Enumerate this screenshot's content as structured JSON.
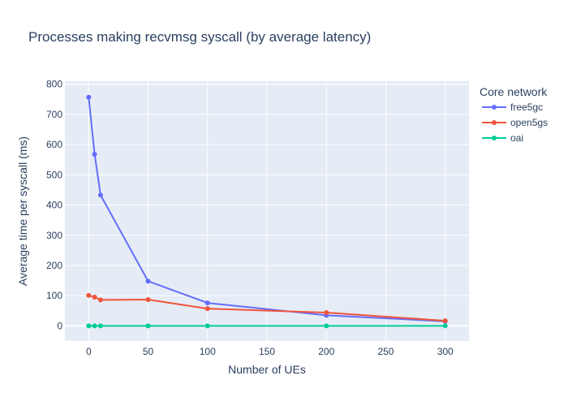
{
  "chart_data": {
    "type": "line",
    "title": "Processes making recvmsg syscall (by average latency)",
    "xlabel": "Number of UEs",
    "ylabel": "Average time per syscall (ms)",
    "xlim": [
      -20,
      320
    ],
    "ylim": [
      -50,
      810
    ],
    "xticks": [
      0,
      50,
      100,
      150,
      200,
      250,
      300
    ],
    "yticks": [
      0,
      100,
      200,
      300,
      400,
      500,
      600,
      700,
      800
    ],
    "grid": true,
    "legend": {
      "title": "Core network",
      "placement": "right"
    },
    "series": [
      {
        "name": "free5gc",
        "color": "#636efa",
        "x": [
          0,
          5,
          10,
          50,
          100,
          200,
          300
        ],
        "y": [
          757,
          568,
          433,
          148,
          76,
          35,
          15
        ]
      },
      {
        "name": "open5gs",
        "color": "#ef553b",
        "x": [
          0,
          5,
          10,
          50,
          100,
          200,
          300
        ],
        "y": [
          101,
          95,
          86,
          87,
          57,
          44,
          17
        ]
      },
      {
        "name": "oai",
        "color": "#00cc96",
        "x": [
          0,
          5,
          10,
          50,
          100,
          200,
          300
        ],
        "y": [
          0,
          0,
          0,
          0,
          0,
          0,
          0
        ]
      }
    ]
  }
}
